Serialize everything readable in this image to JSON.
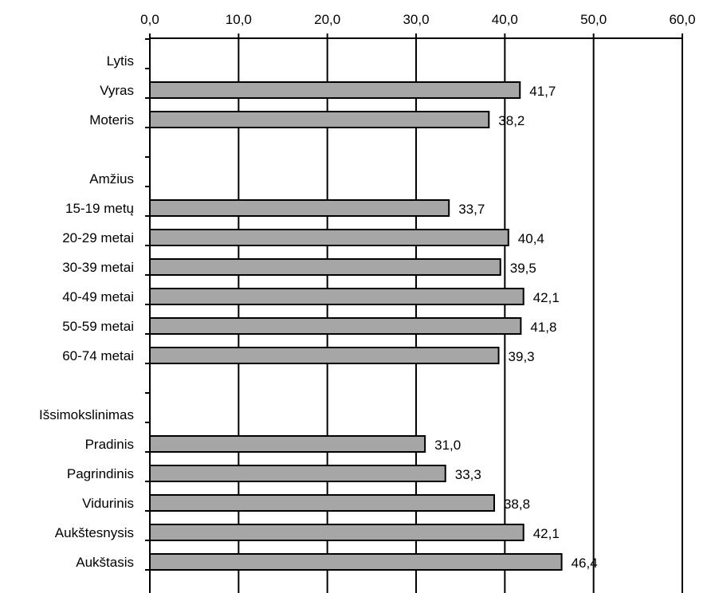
{
  "colors": {
    "bar_fill": "#a6a6a6",
    "bar_stroke": "#000000",
    "axis": "#000000",
    "grid": "#000000",
    "background": "#ffffff"
  },
  "chart_data": {
    "type": "bar",
    "orientation": "horizontal",
    "title": "",
    "xlabel": "",
    "ylabel": "",
    "xlim": [
      0,
      60
    ],
    "x_ticks": [
      "0,0",
      "10,0",
      "20,0",
      "30,0",
      "40,0",
      "50,0",
      "60,0"
    ],
    "x_axis_position": "top",
    "grid": true,
    "legend": "none",
    "categories": [
      "Lytis",
      "Vyras",
      "Moteris",
      "",
      "Amžius",
      "15-19 metų",
      "20-29 metai",
      "30-39 metai",
      "40-49 metai",
      "50-59 metai",
      "60-74 metai",
      "",
      "Išsimokslinimas",
      "Pradinis",
      "Pagrindinis",
      "Vidurinis",
      "Aukštesnysis",
      "Aukštasis"
    ],
    "values": [
      null,
      41.7,
      38.2,
      null,
      null,
      33.7,
      40.4,
      39.5,
      42.1,
      41.8,
      39.3,
      null,
      null,
      31.0,
      33.3,
      38.8,
      42.1,
      46.4
    ],
    "data_labels": [
      null,
      "41,7",
      "38,2",
      null,
      null,
      "33,7",
      "40,4",
      "39,5",
      "42,1",
      "41,8",
      "39,3",
      null,
      null,
      "31,0",
      "33,3",
      "38,8",
      "42,1",
      "46,4"
    ]
  }
}
